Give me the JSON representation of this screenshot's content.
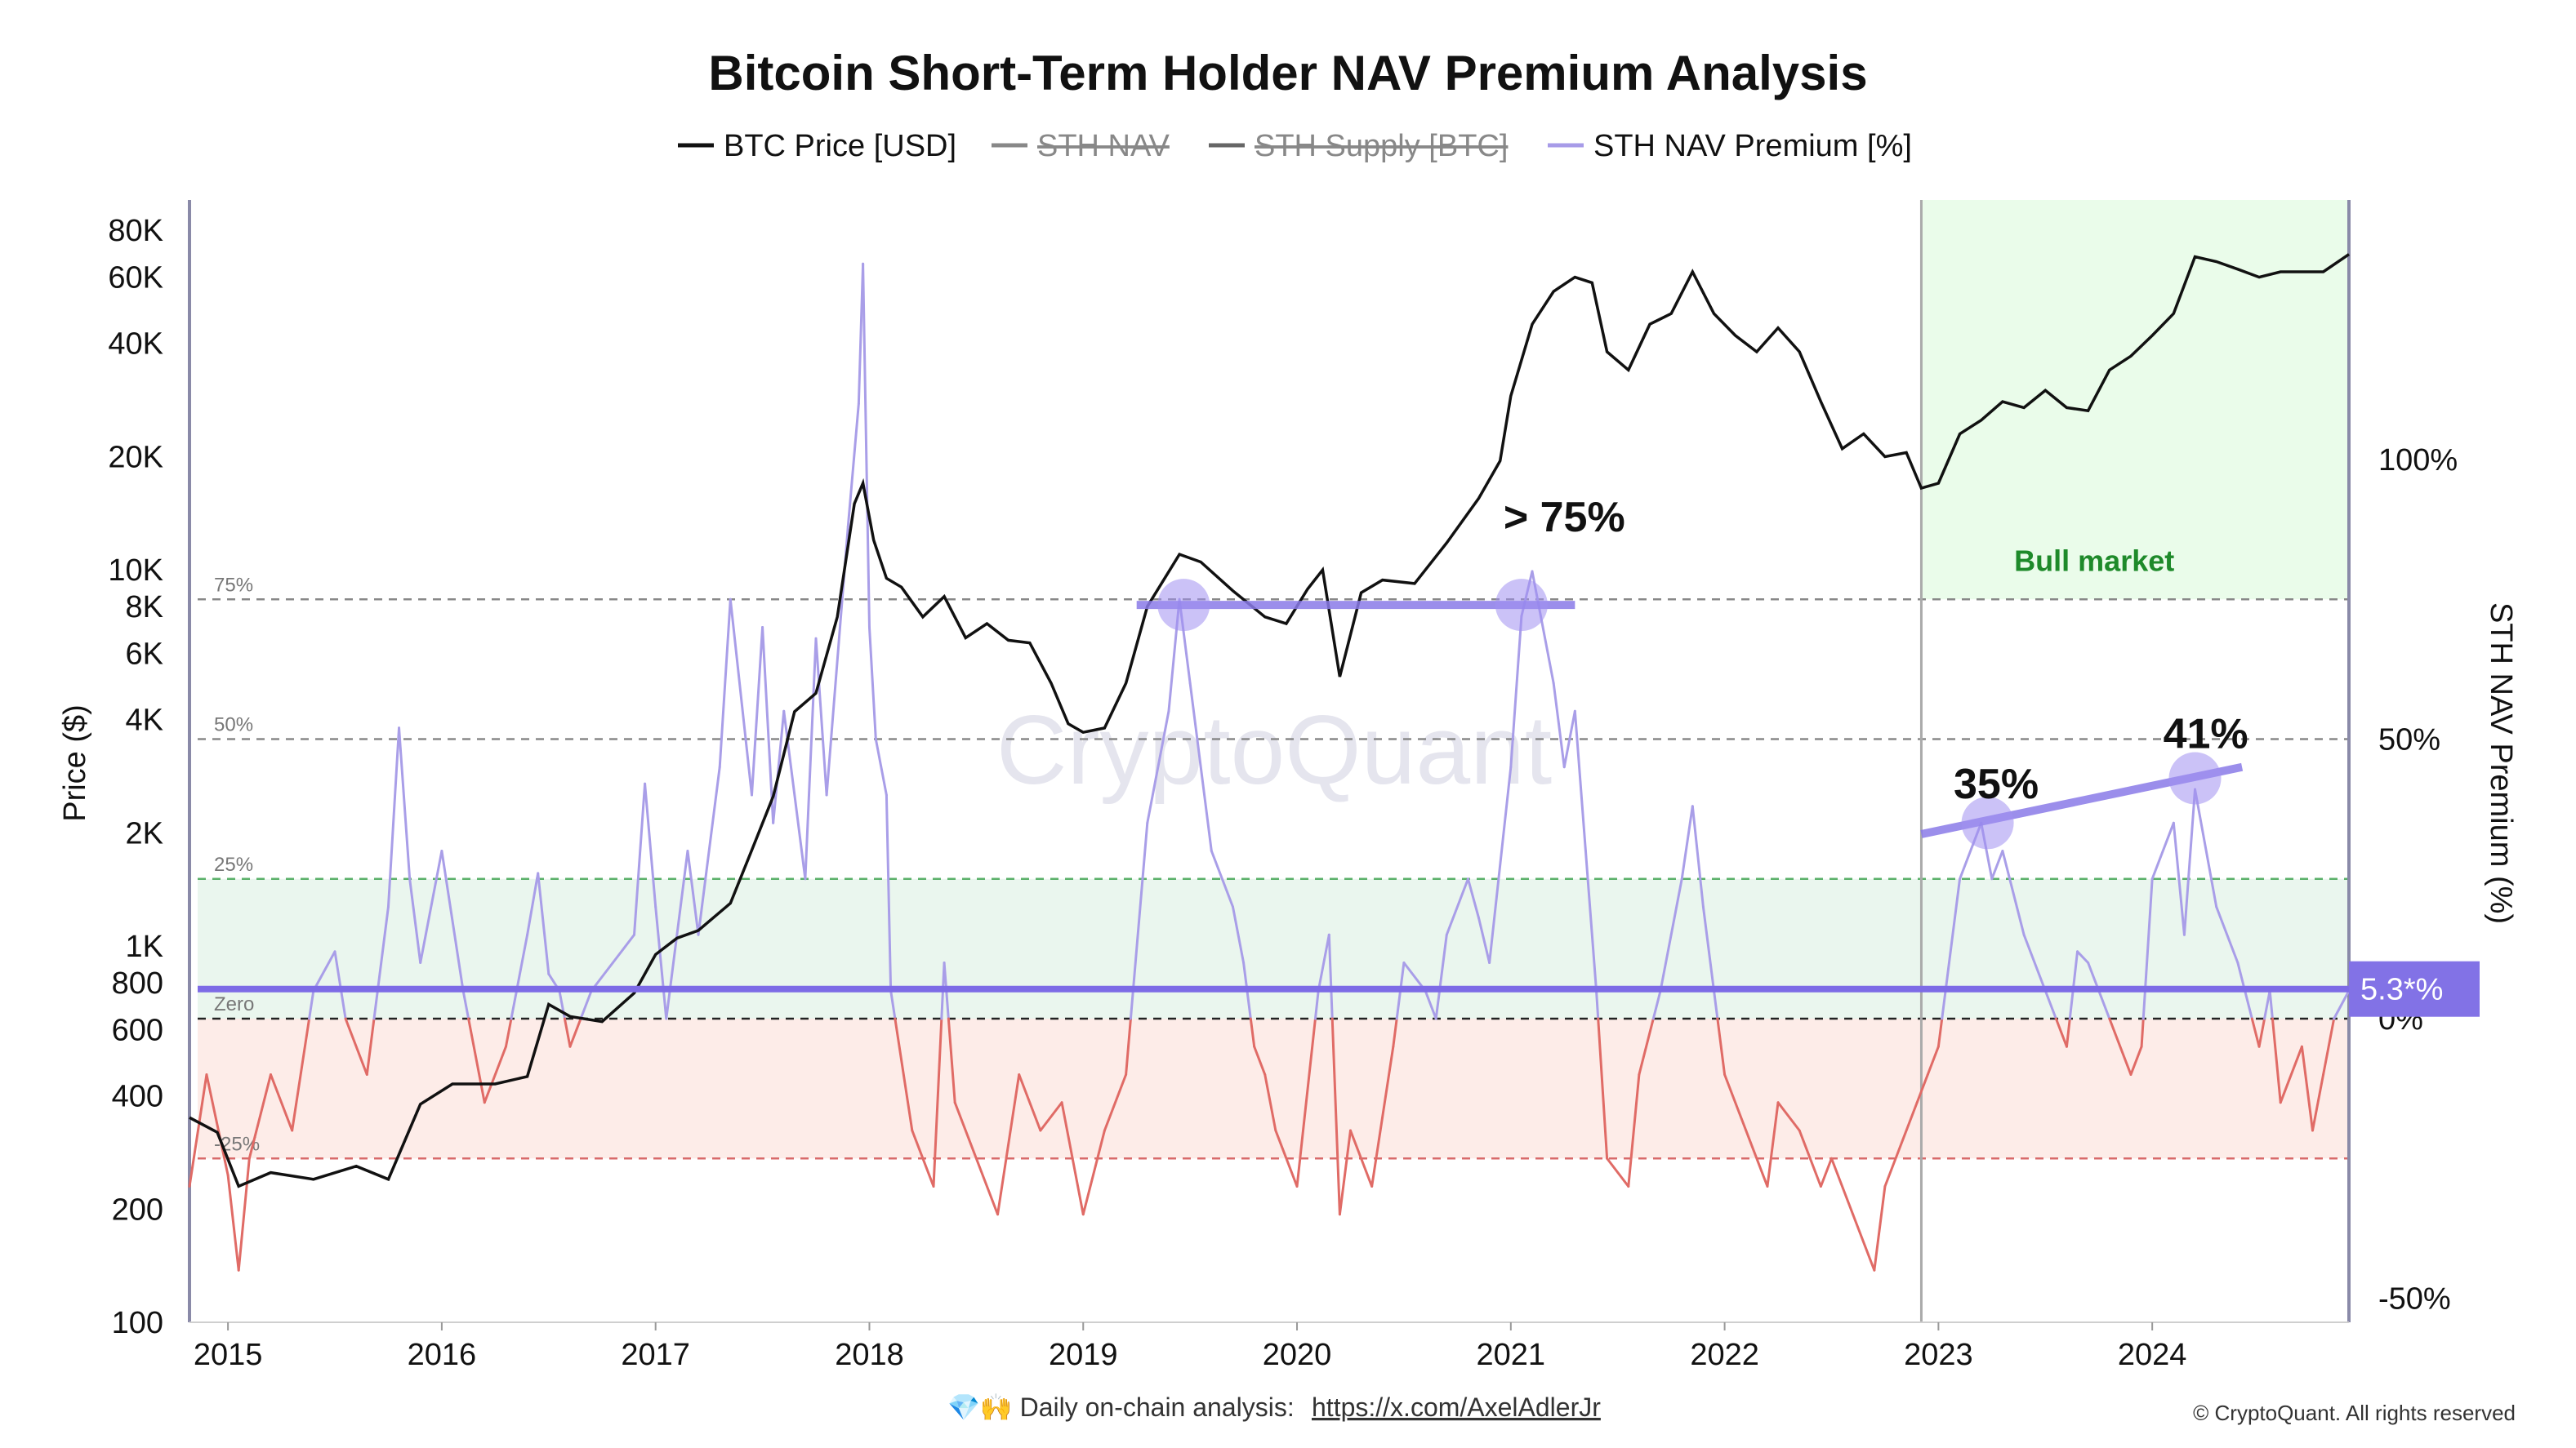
{
  "chart_data": {
    "type": "line",
    "title": "Bitcoin Short-Term Holder NAV Premium Analysis",
    "legend": [
      {
        "label": "BTC Price [USD]",
        "color": "#111111",
        "active": true
      },
      {
        "label": "STH NAV",
        "color": "#888888",
        "active": false
      },
      {
        "label": "STH Supply [BTC]",
        "color": "#666666",
        "active": false
      },
      {
        "label": "STH NAV Premium [%]",
        "color": "#a79be8",
        "active": true
      }
    ],
    "legend_placement": "top-center",
    "ylabel_left": "Price ($)",
    "ylabel_right": "STH NAV Premium (%)",
    "y_left_scale": "log",
    "y_left_range": [
      100,
      100000
    ],
    "y_right_range": [
      -50,
      150
    ],
    "left_ticks": [
      "80K",
      "60K",
      "40K",
      "20K",
      "10K",
      "8K",
      "6K",
      "4K",
      "2K",
      "1K",
      "800",
      "600",
      "400",
      "200",
      "100"
    ],
    "left_tick_values": [
      80000,
      60000,
      40000,
      20000,
      10000,
      8000,
      6000,
      4000,
      2000,
      1000,
      800,
      600,
      400,
      200,
      100
    ],
    "right_ticks": [
      "100%",
      "50%",
      "0%",
      "-50%"
    ],
    "right_tick_values": [
      100,
      50,
      0,
      -50
    ],
    "x_ticks": [
      "2015",
      "2016",
      "2017",
      "2018",
      "2019",
      "2020",
      "2021",
      "2022",
      "2023",
      "2024"
    ],
    "x_tick_values": [
      2015,
      2016,
      2017,
      2018,
      2019,
      2020,
      2021,
      2022,
      2023,
      2024
    ],
    "x_range": [
      2014.82,
      2024.92
    ],
    "reference_lines": [
      {
        "label": "75%",
        "value": 75
      },
      {
        "label": "50%",
        "value": 50
      },
      {
        "label": "25%",
        "value": 25
      },
      {
        "label": "Zero",
        "value": 0
      },
      {
        "label": "-25%",
        "value": -25
      }
    ],
    "current_premium": {
      "label": "5.3*%",
      "value": 5.3
    },
    "bull_market": {
      "label": "Bull market",
      "start": 2022.92,
      "end": 2024.92
    },
    "annotations": [
      {
        "label": "> 75%",
        "x": 2021.0,
        "y": 72
      },
      {
        "label": "35%",
        "x": 2023.27,
        "y": 35
      },
      {
        "label": "41%",
        "x": 2024.2,
        "y": 41
      }
    ],
    "btc_price": {
      "name": "BTC Price [USD]",
      "x": [
        2014.82,
        2014.95,
        2015.05,
        2015.2,
        2015.4,
        2015.6,
        2015.75,
        2015.9,
        2016.05,
        2016.25,
        2016.4,
        2016.5,
        2016.6,
        2016.75,
        2016.9,
        2017.0,
        2017.1,
        2017.2,
        2017.35,
        2017.45,
        2017.55,
        2017.65,
        2017.75,
        2017.85,
        2017.93,
        2017.97,
        2018.02,
        2018.08,
        2018.15,
        2018.25,
        2018.35,
        2018.45,
        2018.55,
        2018.65,
        2018.75,
        2018.85,
        2018.93,
        2019.0,
        2019.1,
        2019.2,
        2019.3,
        2019.45,
        2019.55,
        2019.7,
        2019.85,
        2019.95,
        2020.05,
        2020.12,
        2020.2,
        2020.3,
        2020.4,
        2020.55,
        2020.7,
        2020.85,
        2020.95,
        2021.0,
        2021.1,
        2021.2,
        2021.3,
        2021.38,
        2021.45,
        2021.55,
        2021.65,
        2021.75,
        2021.85,
        2021.95,
        2022.05,
        2022.15,
        2022.25,
        2022.35,
        2022.45,
        2022.55,
        2022.65,
        2022.75,
        2022.85,
        2022.92,
        2023.0,
        2023.1,
        2023.2,
        2023.3,
        2023.4,
        2023.5,
        2023.6,
        2023.7,
        2023.8,
        2023.9,
        2024.0,
        2024.1,
        2024.2,
        2024.3,
        2024.4,
        2024.5,
        2024.6,
        2024.7,
        2024.8,
        2024.92
      ],
      "y": [
        350,
        320,
        230,
        250,
        240,
        260,
        240,
        380,
        430,
        430,
        450,
        700,
        650,
        630,
        750,
        950,
        1050,
        1100,
        1300,
        1800,
        2500,
        4200,
        4700,
        7500,
        15000,
        17000,
        12000,
        9500,
        9000,
        7500,
        8500,
        6600,
        7200,
        6500,
        6400,
        5000,
        3900,
        3700,
        3800,
        5000,
        8000,
        11000,
        10500,
        8800,
        7500,
        7200,
        8900,
        10000,
        5200,
        8700,
        9400,
        9200,
        11800,
        15500,
        19500,
        29000,
        45000,
        55000,
        60000,
        58000,
        38000,
        34000,
        45000,
        48000,
        62000,
        48000,
        42000,
        38000,
        44000,
        38000,
        28000,
        21000,
        23000,
        20000,
        20500,
        16500,
        17000,
        23000,
        25000,
        28000,
        27000,
        30000,
        27000,
        26500,
        34000,
        37000,
        42000,
        48000,
        68000,
        66000,
        63000,
        60000,
        62000,
        62000,
        62000,
        69000
      ]
    },
    "premium": {
      "name": "STH NAV Premium [%]",
      "x": [
        2014.82,
        2014.9,
        2015.0,
        2015.05,
        2015.1,
        2015.2,
        2015.3,
        2015.4,
        2015.5,
        2015.55,
        2015.65,
        2015.75,
        2015.8,
        2015.85,
        2015.9,
        2016.0,
        2016.1,
        2016.2,
        2016.3,
        2016.4,
        2016.45,
        2016.5,
        2016.55,
        2016.6,
        2016.7,
        2016.8,
        2016.9,
        2016.95,
        2017.0,
        2017.05,
        2017.15,
        2017.2,
        2017.3,
        2017.35,
        2017.45,
        2017.5,
        2017.55,
        2017.6,
        2017.7,
        2017.75,
        2017.8,
        2017.9,
        2017.95,
        2017.97,
        2018.0,
        2018.03,
        2018.08,
        2018.1,
        2018.2,
        2018.3,
        2018.35,
        2018.4,
        2018.5,
        2018.6,
        2018.7,
        2018.8,
        2018.9,
        2018.95,
        2019.0,
        2019.1,
        2019.2,
        2019.3,
        2019.4,
        2019.45,
        2019.5,
        2019.6,
        2019.7,
        2019.75,
        2019.8,
        2019.85,
        2019.9,
        2020.0,
        2020.1,
        2020.15,
        2020.2,
        2020.25,
        2020.35,
        2020.45,
        2020.5,
        2020.6,
        2020.65,
        2020.7,
        2020.8,
        2020.85,
        2020.9,
        2021.0,
        2021.05,
        2021.1,
        2021.2,
        2021.25,
        2021.3,
        2021.35,
        2021.4,
        2021.45,
        2021.55,
        2021.6,
        2021.7,
        2021.75,
        2021.8,
        2021.85,
        2021.9,
        2022.0,
        2022.1,
        2022.2,
        2022.25,
        2022.35,
        2022.45,
        2022.5,
        2022.6,
        2022.7,
        2022.75,
        2022.8,
        2022.9,
        2022.95,
        2023.0,
        2023.1,
        2023.2,
        2023.25,
        2023.3,
        2023.4,
        2023.5,
        2023.6,
        2023.65,
        2023.7,
        2023.8,
        2023.9,
        2023.95,
        2024.0,
        2024.1,
        2024.15,
        2024.2,
        2024.3,
        2024.4,
        2024.5,
        2024.55,
        2024.6,
        2024.7,
        2024.75,
        2024.8,
        2024.85,
        2024.92
      ],
      "y": [
        -30,
        -10,
        -28,
        -45,
        -25,
        -10,
        -20,
        5,
        12,
        0,
        -10,
        20,
        52,
        25,
        10,
        30,
        5,
        -15,
        -5,
        15,
        26,
        8,
        5,
        -5,
        5,
        10,
        15,
        42,
        20,
        0,
        30,
        15,
        45,
        75,
        40,
        70,
        35,
        55,
        25,
        68,
        40,
        88,
        110,
        135,
        70,
        50,
        40,
        5,
        -20,
        -30,
        10,
        -15,
        -25,
        -35,
        -10,
        -20,
        -15,
        -25,
        -35,
        -20,
        -10,
        35,
        55,
        75,
        60,
        30,
        20,
        10,
        -5,
        -10,
        -20,
        -30,
        5,
        15,
        -35,
        -20,
        -30,
        -5,
        10,
        5,
        0,
        15,
        25,
        18,
        10,
        45,
        72,
        80,
        60,
        45,
        55,
        30,
        5,
        -25,
        -30,
        -10,
        5,
        15,
        25,
        38,
        20,
        -10,
        -20,
        -30,
        -15,
        -20,
        -30,
        -25,
        -35,
        -45,
        -30,
        -25,
        -15,
        -10,
        -5,
        25,
        35,
        25,
        30,
        15,
        5,
        -5,
        12,
        10,
        0,
        -10,
        -5,
        25,
        35,
        15,
        41,
        20,
        10,
        -5,
        5,
        -15,
        -5,
        -20,
        -10,
        0,
        5
      ]
    },
    "footer_left": "💎🙌 Daily on-chain analysis:",
    "footer_link": "https://x.com/AxelAdlerJr",
    "footer_right": "© CryptoQuant. All rights reserved",
    "watermark": "CryptoQuant"
  }
}
